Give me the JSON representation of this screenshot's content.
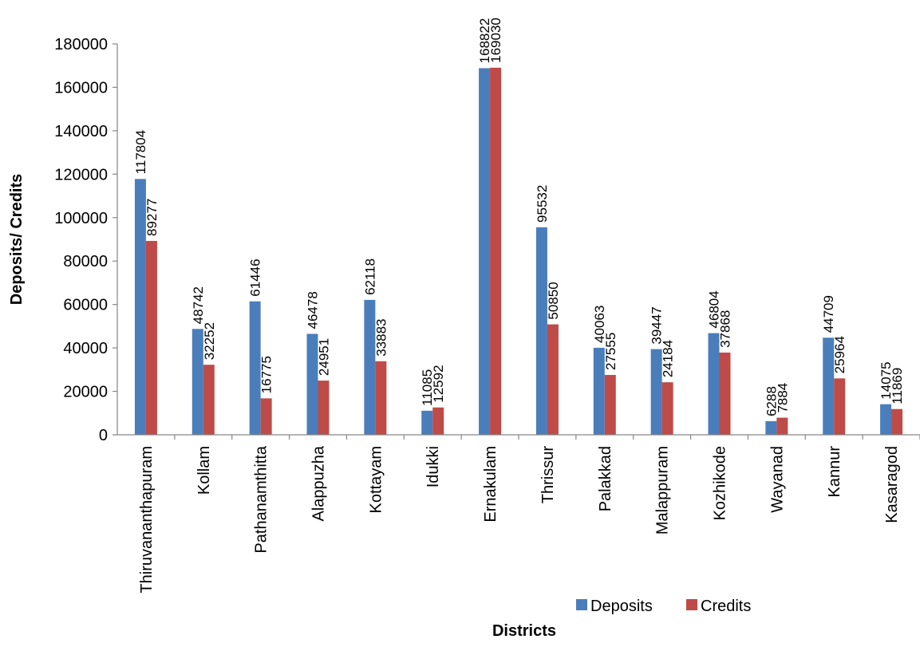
{
  "chart_data": {
    "type": "bar",
    "title": "",
    "xlabel": "Districts",
    "ylabel": "Deposits/ Credits",
    "ylim": [
      0,
      180000
    ],
    "yticks": [
      0,
      20000,
      40000,
      60000,
      80000,
      100000,
      120000,
      140000,
      160000,
      180000
    ],
    "grid": false,
    "legend_position": "bottom-right",
    "categories": [
      "Thiruvananthapuram",
      "Kollam",
      "Pathanamthitta",
      "Alappuzha",
      "Kottayam",
      "Idukki",
      "Ernakulam",
      "Thrissur",
      "Palakkad",
      "Malappuram",
      "Kozhikode",
      "Wayanad",
      "Kannur",
      "Kasaragod"
    ],
    "series": [
      {
        "name": "Deposits",
        "color": "#4a7ebb",
        "values": [
          117804,
          48742,
          61446,
          46478,
          62118,
          11085,
          168822,
          95532,
          40063,
          39447,
          46804,
          6288,
          44709,
          14075
        ]
      },
      {
        "name": "Credits",
        "color": "#be4b48",
        "values": [
          89277,
          32252,
          16775,
          24951,
          33883,
          12592,
          169030,
          50850,
          27555,
          24184,
          37868,
          7884,
          25964,
          11869
        ]
      }
    ]
  }
}
